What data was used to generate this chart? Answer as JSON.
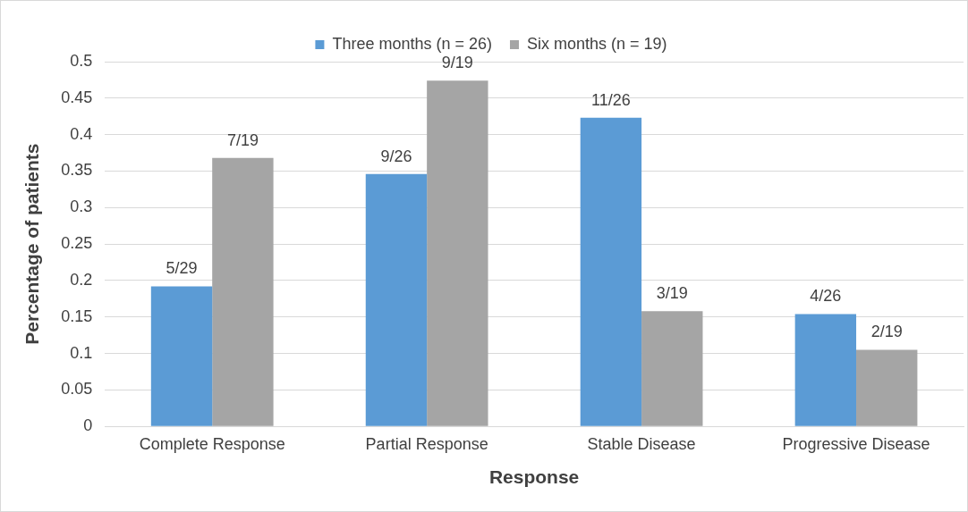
{
  "chart_data": {
    "type": "bar",
    "xlabel": "Response",
    "ylabel": "Percentage of patients",
    "categories": [
      "Complete Response",
      "Partial Response",
      "Stable Disease",
      "Progressive Disease"
    ],
    "series": [
      {
        "name": "Three months (n = 26)",
        "color": "#5b9bd5",
        "values": [
          0.192,
          0.346,
          0.423,
          0.154
        ],
        "value_labels": [
          "5/29",
          "9/26",
          "11/26",
          "4/26"
        ]
      },
      {
        "name": "Six months (n = 19)",
        "color": "#a5a5a5",
        "values": [
          0.368,
          0.474,
          0.158,
          0.105
        ],
        "value_labels": [
          "7/19",
          "9/19",
          "3/19",
          "2/19"
        ]
      }
    ],
    "ylim": [
      0,
      0.5
    ],
    "yticks": [
      0,
      0.05,
      0.1,
      0.15,
      0.2,
      0.25,
      0.3,
      0.35,
      0.4,
      0.45,
      0.5
    ],
    "grid": "y",
    "legend": "top"
  }
}
